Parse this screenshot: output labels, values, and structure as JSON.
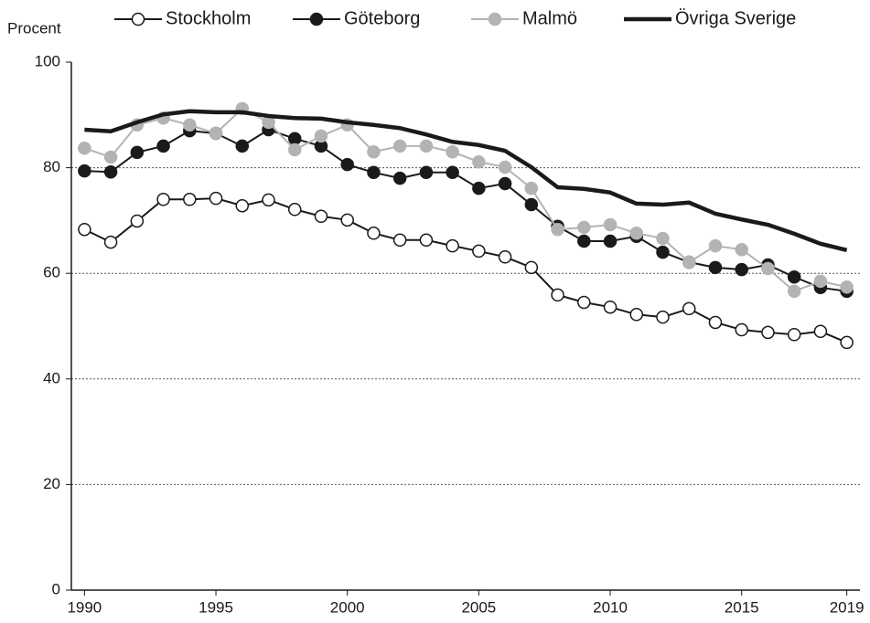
{
  "chart_data": {
    "type": "line",
    "ylabel": "Procent",
    "x": [
      1990,
      1991,
      1992,
      1993,
      1994,
      1995,
      1996,
      1997,
      1998,
      1999,
      2000,
      2001,
      2002,
      2003,
      2004,
      2005,
      2006,
      2007,
      2008,
      2009,
      2010,
      2011,
      2012,
      2013,
      2014,
      2015,
      2016,
      2017,
      2018,
      2019
    ],
    "xlim": [
      1989.5,
      2019.5
    ],
    "xticks": [
      1990,
      1995,
      2000,
      2005,
      2010,
      2015,
      2019
    ],
    "ylim": [
      0,
      100
    ],
    "yticks": [
      0,
      20,
      40,
      60,
      80,
      100
    ],
    "grid": true,
    "legend": "top",
    "series": [
      {
        "name": "Stockholm",
        "color": "#1a1a1a",
        "marker": "circle",
        "marker_fill": "#ffffff",
        "line_width": 2,
        "values": [
          68.3,
          65.9,
          69.9,
          74,
          74,
          74.2,
          72.8,
          73.9,
          72.1,
          70.8,
          70.1,
          67.6,
          66.3,
          66.3,
          65.2,
          64.2,
          63.1,
          61.1,
          55.9,
          54.5,
          53.6,
          52.2,
          51.7,
          53.3,
          50.7,
          49.3,
          48.8,
          48.4,
          49,
          46.9
        ]
      },
      {
        "name": "Göteborg",
        "color": "#1a1a1a",
        "marker": "circle",
        "marker_fill": "#1a1a1a",
        "line_width": 2,
        "values": [
          79.4,
          79.2,
          82.9,
          84.1,
          87,
          86.5,
          84.1,
          87.2,
          85.5,
          84.1,
          80.6,
          79.1,
          78,
          79.1,
          79.1,
          76.1,
          77,
          73,
          68.9,
          66.1,
          66.1,
          67,
          64,
          62.1,
          61.1,
          60.7,
          61.6,
          59.3,
          57.3,
          56.6
        ]
      },
      {
        "name": "Malmö",
        "color": "#b3b3b3",
        "marker": "circle",
        "marker_fill": "#b3b3b3",
        "line_width": 2,
        "values": [
          83.7,
          82,
          88.1,
          89.4,
          88.1,
          86.5,
          91.2,
          88.6,
          83.4,
          86,
          88.1,
          83,
          84.1,
          84.1,
          83,
          81.1,
          80.1,
          76.1,
          68.3,
          68.7,
          69.2,
          67.6,
          66.6,
          62.1,
          65.2,
          64.5,
          60.9,
          56.6,
          58.5,
          57.4
        ]
      },
      {
        "name": "Övriga Sverige",
        "color": "#1a1a1a",
        "marker": null,
        "marker_fill": null,
        "line_width": 4.5,
        "values": [
          87.2,
          86.9,
          88.6,
          90.1,
          90.7,
          90.5,
          90.5,
          89.8,
          89.4,
          89.3,
          88.6,
          88.1,
          87.5,
          86.3,
          84.9,
          84.3,
          83.2,
          80.1,
          76.3,
          76,
          75.3,
          73.2,
          73,
          73.4,
          71.3,
          70.2,
          69.2,
          67.5,
          65.6,
          64.4
        ]
      }
    ]
  }
}
